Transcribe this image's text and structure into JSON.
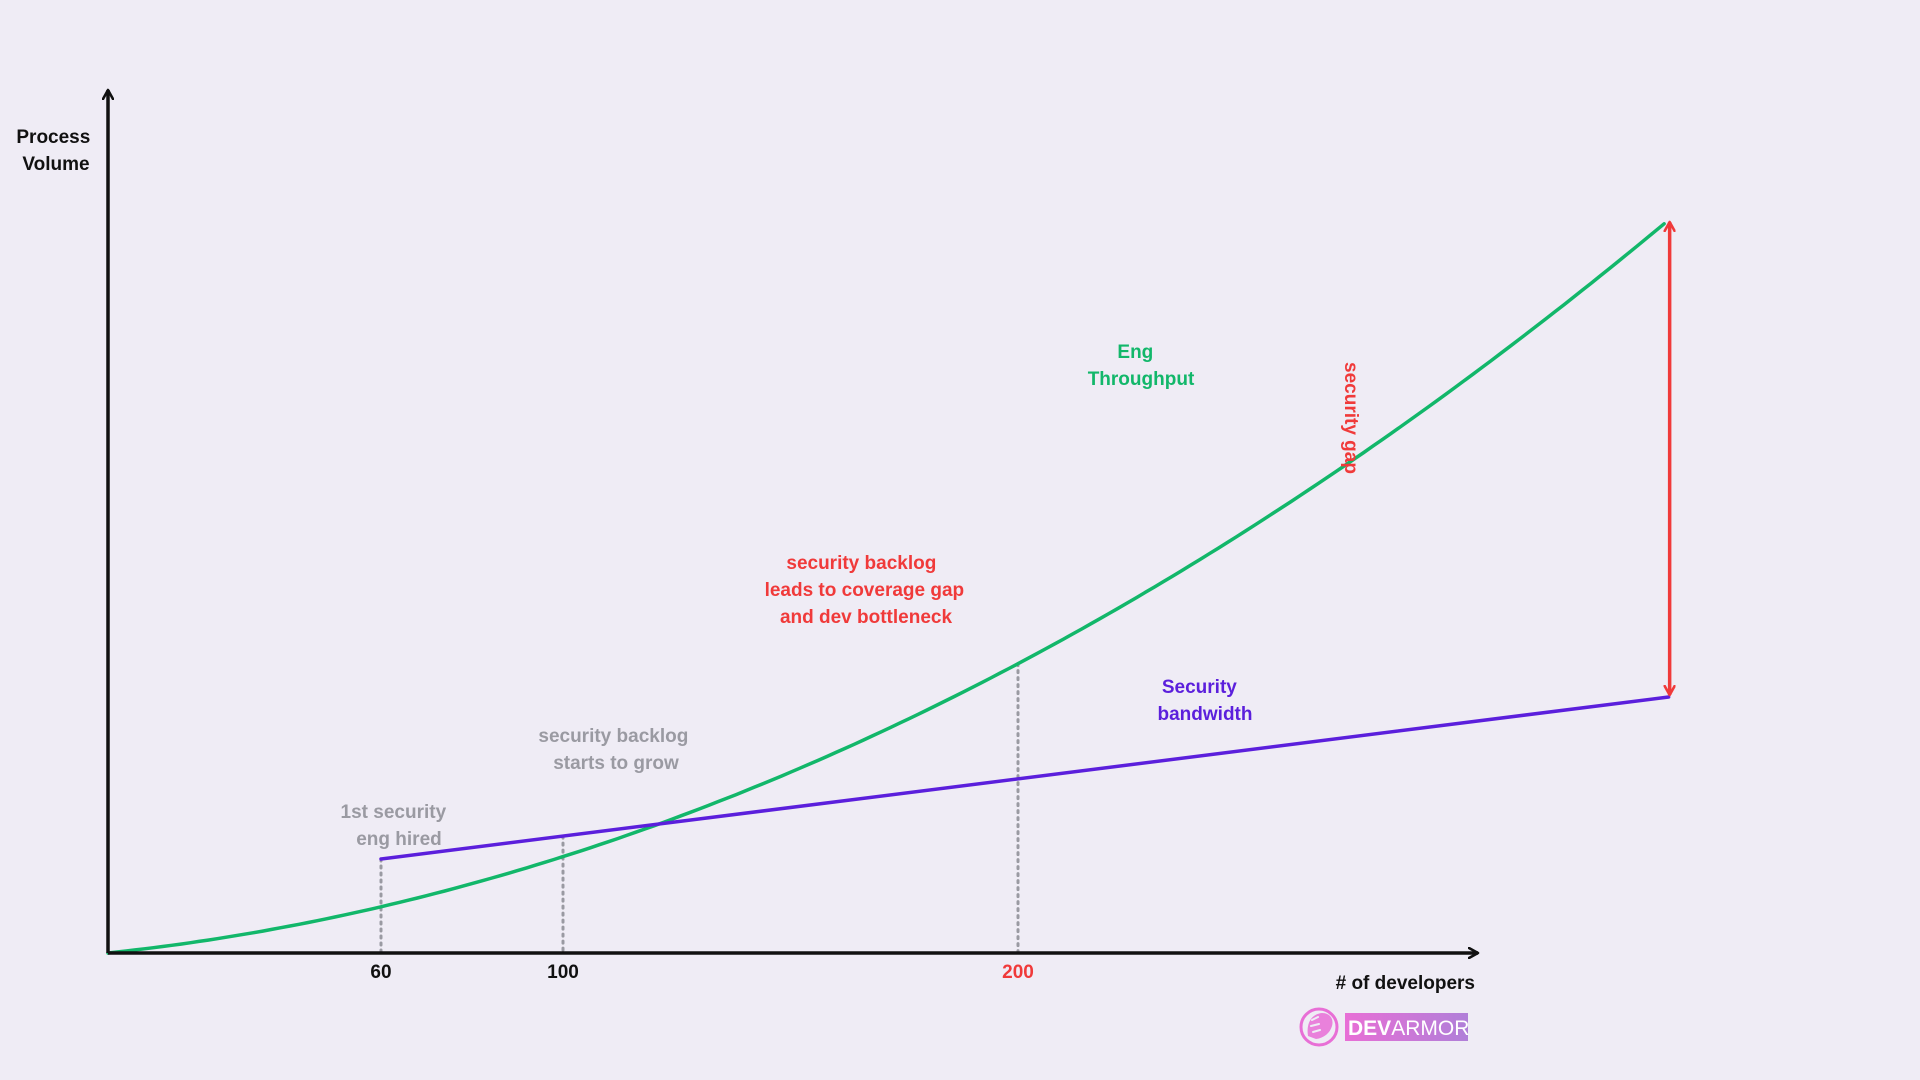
{
  "chart_data": {
    "type": "line",
    "title": "",
    "xlabel": "# of developers",
    "ylabel": [
      "Process",
      "Volume"
    ],
    "x_ticks": [
      {
        "label": "60",
        "value": 60,
        "color": "#111111"
      },
      {
        "label": "100",
        "value": 100,
        "color": "#111111"
      },
      {
        "label": "200",
        "value": 200,
        "color": "#f03a3a"
      }
    ],
    "series": [
      {
        "name": "Eng Throughput",
        "label_lines": [
          "Eng",
          "Throughput"
        ],
        "color": "#12b76a",
        "shape": "convex-growth",
        "start_x": 0,
        "end_x": 343
      },
      {
        "name": "Security bandwidth",
        "label_lines": [
          "Security",
          "bandwidth"
        ],
        "color": "#5b1fdc",
        "shape": "linear",
        "start_x": 60,
        "end_x": 343
      }
    ],
    "annotations": [
      {
        "id": "first-hire",
        "x": 60,
        "color": "#9a9aa2",
        "lines": [
          "1st security",
          "eng hired"
        ]
      },
      {
        "id": "backlog-grows",
        "x": 100,
        "color": "#9a9aa2",
        "lines": [
          "security backlog",
          "starts to grow"
        ]
      },
      {
        "id": "coverage-gap",
        "x": 200,
        "color": "#f03a3a",
        "lines": [
          "security backlog",
          "leads to coverage gap",
          "and dev bottleneck"
        ]
      }
    ],
    "gap_marker": {
      "label": "security gap",
      "color": "#f03a3a"
    },
    "axis_color": "#111111",
    "grid": false,
    "legend": "none"
  },
  "logo": {
    "brand_a": "DEV",
    "brand_b": "ARMOR",
    "icon": "lion-head-icon"
  }
}
